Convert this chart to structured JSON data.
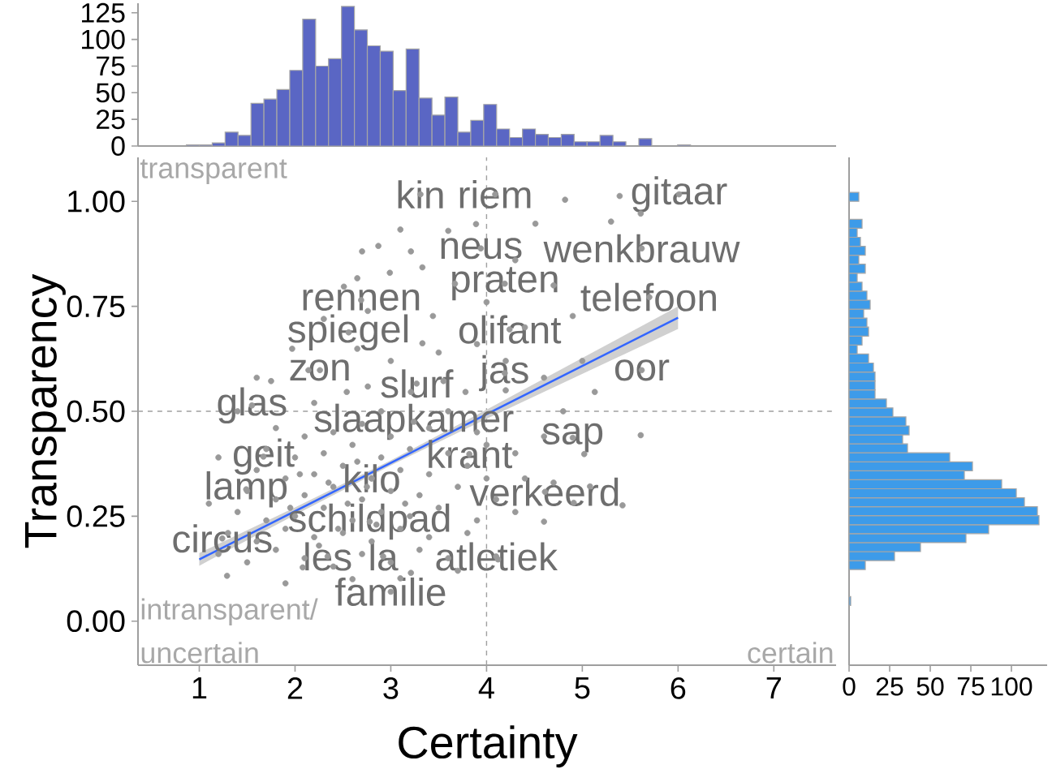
{
  "chart_data": [
    {
      "type": "histogram",
      "bins": [
        0.73,
        0.865,
        1.0,
        1.135,
        1.27,
        1.405,
        1.54,
        1.675,
        1.81,
        1.945,
        2.08,
        2.215,
        2.35,
        2.485,
        2.62,
        2.755,
        2.89,
        3.025,
        3.16,
        3.295,
        3.43,
        3.565,
        3.7,
        3.835,
        3.97,
        4.105,
        4.24,
        4.375,
        4.51,
        4.645,
        4.78,
        4.915,
        5.05,
        5.185,
        5.32,
        5.455,
        5.59,
        5.725,
        5.86,
        5.995,
        6.13,
        6.265,
        6.4,
        6.535,
        6.67,
        6.805,
        6.94,
        7.075,
        7.21
      ],
      "values": [
        0,
        1,
        1,
        3,
        13,
        10,
        40,
        44,
        53,
        71,
        119,
        75,
        82,
        131,
        109,
        94,
        89,
        52,
        91,
        45,
        29,
        46,
        13,
        24,
        39,
        16,
        8,
        16,
        11,
        8,
        11,
        4,
        4,
        10,
        4,
        0,
        7,
        0,
        0,
        1,
        0,
        0,
        0,
        0,
        0,
        0,
        0,
        0
      ],
      "color": "#5a66c4",
      "xlim": [
        0.36,
        7.65
      ],
      "ylim": [
        0,
        134
      ],
      "yticks": [
        0,
        25,
        50,
        75,
        100,
        125
      ],
      "tick_labels": "y"
    },
    {
      "type": "scatter",
      "xlabel": "Certainty",
      "ylabel": "Transparency",
      "xlim": [
        0.36,
        7.65
      ],
      "ylim": [
        -0.105,
        1.105
      ],
      "xticks": [
        1,
        2,
        3,
        4,
        5,
        6,
        7
      ],
      "yticks": [
        {
          "value": 0,
          "label": "0.00"
        },
        0.25,
        {
          "value": 0.5,
          "label": "0.50"
        },
        0.75,
        {
          "value": 1,
          "label": "1.00"
        }
      ],
      "marker": "circle",
      "series": [
        {
          "color": "#999999",
          "x": [
            1.2,
            1.5,
            1.8,
            2.1,
            2.4,
            2.7,
            3.0,
            3.3,
            3.6,
            1.3,
            1.6,
            1.9,
            2.2,
            2.5,
            2.8,
            3.1,
            3.4,
            3.8,
            1.4,
            1.7,
            2.0,
            2.3,
            2.6,
            2.9,
            3.2,
            3.5,
            3.9,
            4.3,
            1.5,
            1.8,
            2.1,
            2.4,
            2.7,
            3.0,
            3.3,
            3.7,
            4.1,
            1.6,
            1.9,
            2.2,
            2.5,
            2.8,
            3.1,
            3.4,
            3.8,
            4.4,
            1.7,
            2.0,
            2.3,
            2.6,
            2.9,
            3.2,
            3.6,
            4.0,
            1.8,
            2.1,
            2.4,
            2.7,
            3.0,
            3.4,
            3.9,
            4.6,
            2.25,
            2.55,
            2.85,
            2.35,
            2.65,
            1.95,
            3.15,
            2.45,
            2.75,
            2.05,
            4.82,
            5.39,
            5.61,
            4.51,
            5.3,
            4.9,
            5.13,
            5.61,
            5.02,
            3.89,
            4.6,
            1.29,
            5.08,
            5.42,
            3.21,
            2.08,
            3.1,
            4.12,
            4.91,
            2.7,
            2.87,
            3.21,
            3.1,
            2.99,
            3.33,
            2.51,
            2.65,
            3.67,
            2.76,
            3.44,
            1.97,
            2.65,
            3.33,
            1.75,
            2.14,
            2.54,
            2.76,
            3.21,
            3.55,
            3.78,
            4.2,
            4.4,
            4.7,
            4.3,
            3.6,
            4.0,
            4.6,
            4.2,
            3.9,
            1.4,
            1.2,
            1.1,
            1.6,
            4.8,
            4.3,
            4.7,
            4.0,
            3.7,
            2.6,
            1.9,
            5.0,
            2.3,
            2.2,
            3.0,
            3.5,
            2.9,
            3.6,
            3.31,
            4.09,
            6.01,
            3.94,
            5.62,
            4.19,
            5.7,
            2.69,
            4.24,
            2.56,
            2.26,
            5.62,
            4.19,
            3.27,
            1.55,
            3.24,
            4.9,
            3.82,
            1.67,
            2.8,
            1.49,
            4.61,
            2.78,
            1.24,
            2.34,
            2.92,
            4.1,
            3.0
          ],
          "values": [
            0.16,
            0.14,
            0.17,
            0.15,
            0.13,
            0.16,
            0.14,
            0.17,
            0.15,
            0.21,
            0.19,
            0.22,
            0.2,
            0.21,
            0.19,
            0.22,
            0.2,
            0.21,
            0.26,
            0.24,
            0.25,
            0.27,
            0.24,
            0.26,
            0.25,
            0.27,
            0.24,
            0.26,
            0.31,
            0.29,
            0.3,
            0.32,
            0.29,
            0.31,
            0.3,
            0.32,
            0.29,
            0.36,
            0.34,
            0.35,
            0.37,
            0.34,
            0.36,
            0.35,
            0.37,
            0.34,
            0.41,
            0.39,
            0.4,
            0.42,
            0.39,
            0.41,
            0.4,
            0.42,
            0.46,
            0.44,
            0.45,
            0.47,
            0.44,
            0.46,
            0.45,
            0.44,
            0.18,
            0.28,
            0.23,
            0.33,
            0.38,
            0.27,
            0.28,
            0.22,
            0.32,
            0.35,
            1.004,
            1.013,
            0.971,
            0.947,
            0.952,
            0.727,
            0.546,
            0.443,
            0.398,
            0.946,
            0.237,
            0.108,
            0.321,
            0.276,
            0.115,
            0.128,
            0.102,
            0.147,
            0.282,
            0.881,
            0.894,
            0.881,
            0.933,
            0.83,
            0.843,
            0.797,
            0.817,
            0.804,
            0.739,
            0.727,
            0.649,
            0.649,
            0.662,
            0.572,
            0.598,
            0.546,
            0.559,
            0.546,
            0.572,
            0.546,
            0.62,
            0.7,
            0.8,
            0.86,
            0.93,
            0.76,
            0.58,
            0.55,
            0.66,
            0.5,
            0.39,
            0.28,
            0.58,
            0.5,
            0.4,
            0.33,
            0.34,
            0.12,
            0.1,
            0.09,
            0.62,
            0.72,
            0.52,
            0.62,
            0.64,
            0.5,
            0.5,
            1.017,
            1.017,
            1.017,
            0.888,
            0.888,
            0.804,
            0.772,
            0.765,
            0.695,
            0.688,
            0.598,
            0.598,
            0.591,
            0.566,
            0.514,
            0.475,
            0.437,
            0.398,
            0.392,
            0.34,
            0.314,
            0.308,
            0.237,
            0.197,
            0.154,
            0.154,
            0.154,
            0.07
          ]
        },
        {
          "type": "line",
          "color": "#3366ff",
          "marker": "none",
          "x": [
            1,
            2,
            3,
            4,
            5,
            6
          ],
          "values": [
            0.147,
            0.262,
            0.377,
            0.493,
            0.608,
            0.723
          ],
          "lower": [
            0.132,
            0.253,
            0.371,
            0.482,
            0.589,
            0.696
          ],
          "upper": [
            0.162,
            0.271,
            0.383,
            0.504,
            0.627,
            0.75
          ]
        }
      ],
      "ref_lines": [
        {
          "axis": "x",
          "value": 4,
          "color": "#a0a0a0",
          "line_style": "dashed"
        },
        {
          "axis": "y",
          "value": 0.5,
          "color": "#a0a0a0",
          "line_style": "dashed"
        }
      ],
      "annotations": [
        "transparent",
        {
          "text": "kin",
          "x": 3.31,
          "y": 1.017
        },
        {
          "text": "riem",
          "x": 4.09,
          "y": 1.017
        },
        {
          "text": "gitaar",
          "x": 6.01,
          "y": 1.017
        },
        {
          "text": "neus",
          "x": 3.94,
          "y": 0.888
        },
        {
          "text": "wenkbrauw",
          "x": 5.62,
          "y": 0.888
        },
        {
          "text": "praten",
          "x": 4.19,
          "y": 0.804
        },
        {
          "text": "telefoon",
          "x": 5.7,
          "y": 0.772
        },
        {
          "text": "rennen",
          "x": 2.69,
          "y": 0.765
        },
        {
          "text": "olifant",
          "x": 4.24,
          "y": 0.695
        },
        {
          "text": "spiegel",
          "x": 2.56,
          "y": 0.688
        },
        {
          "text": "zon",
          "x": 2.26,
          "y": 0.598
        },
        {
          "text": "oor",
          "x": 5.62,
          "y": 0.598
        },
        {
          "text": "jas",
          "x": 4.19,
          "y": 0.591
        },
        {
          "text": "slurf",
          "x": 3.27,
          "y": 0.566
        },
        {
          "text": "glas",
          "x": 1.55,
          "y": 0.514
        },
        {
          "text": "slaapkamer",
          "x": 3.24,
          "y": 0.475
        },
        {
          "text": "sap",
          "x": 4.9,
          "y": 0.437
        },
        {
          "text": "krant",
          "x": 3.82,
          "y": 0.398
        },
        {
          "text": "geit",
          "x": 1.67,
          "y": 0.392
        },
        {
          "text": "kilo",
          "x": 2.8,
          "y": 0.34
        },
        {
          "text": "lamp",
          "x": 1.49,
          "y": 0.314
        },
        {
          "text": "verkeerd",
          "x": 4.61,
          "y": 0.308
        },
        {
          "text": "schildpad",
          "x": 2.78,
          "y": 0.237
        },
        {
          "text": "circus",
          "x": 1.24,
          "y": 0.197
        },
        {
          "text": "les",
          "x": 2.34,
          "y": 0.154
        },
        {
          "text": "la",
          "x": 2.92,
          "y": 0.154
        },
        {
          "text": "atletiek",
          "x": 4.1,
          "y": 0.154
        },
        {
          "text": "familie",
          "x": 3.0,
          "y": 0.07
        },
        "intransparent/",
        "uncertain",
        "certain"
      ]
    },
    {
      "type": "histogram",
      "orientation": "horizontal",
      "bins": [
        -0.027,
        -0.0056,
        0.0158,
        0.0372,
        0.0586,
        0.08,
        0.1014,
        0.1228,
        0.1442,
        0.1656,
        0.187,
        0.2084,
        0.2298,
        0.2512,
        0.2726,
        0.294,
        0.3154,
        0.3368,
        0.3582,
        0.3796,
        0.401,
        0.4224,
        0.4438,
        0.4652,
        0.4866,
        0.508,
        0.5294,
        0.5508,
        0.5722,
        0.5936,
        0.615,
        0.6364,
        0.6578,
        0.6792,
        0.7006,
        0.722,
        0.7434,
        0.7648,
        0.7862,
        0.8076,
        0.829,
        0.8504,
        0.8718,
        0.8932,
        0.9146,
        0.936,
        0.9574,
        0.9788,
        1.0002,
        1.0216,
        1.043
      ],
      "values": [
        0,
        0,
        0,
        1,
        0,
        0,
        0,
        10,
        28,
        44,
        72,
        86,
        117,
        116,
        108,
        103,
        94,
        71,
        76,
        62,
        36,
        33,
        37,
        35,
        27,
        23,
        16,
        16,
        16,
        15,
        12,
        5,
        8,
        12,
        11,
        9,
        13,
        11,
        8,
        5,
        10,
        6,
        10,
        7,
        5,
        8,
        0,
        0,
        6,
        0
      ],
      "color": "#3d9be9",
      "xlim": [
        0,
        122
      ],
      "xticks": [
        0,
        25,
        50,
        75,
        100
      ],
      "ylim": [
        -0.105,
        1.105
      ],
      "tick_labels": "x"
    }
  ]
}
